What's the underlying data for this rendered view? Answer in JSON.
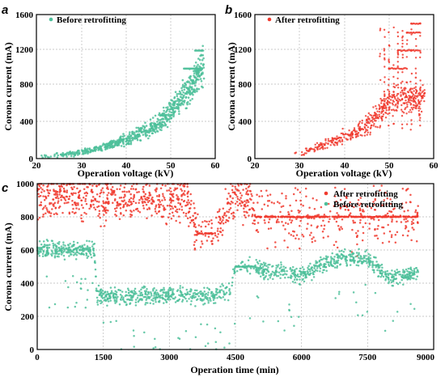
{
  "colors": {
    "before": "#4dbf9a",
    "after": "#f03a2e"
  },
  "chart_data": [
    {
      "panel": "a",
      "type": "scatter",
      "xlabel": "Operation voltage (kV)",
      "ylabel": "Corona current (mA)",
      "xlim": [
        20,
        60
      ],
      "ylim": [
        0,
        1600
      ],
      "xticks": [
        "20",
        "30",
        "40",
        "50",
        "60"
      ],
      "yticks": [
        "0",
        "400",
        "800",
        "1200",
        "1600"
      ],
      "grid": true,
      "legend": "top-left",
      "series": [
        {
          "name": "Before retrofitting",
          "color": "#4dbf9a",
          "trend": [
            [
              20,
              15
            ],
            [
              25,
              30
            ],
            [
              30,
              70
            ],
            [
              35,
              130
            ],
            [
              40,
              210
            ],
            [
              45,
              320
            ],
            [
              48,
              420
            ],
            [
              50,
              520
            ],
            [
              52,
              640
            ],
            [
              54,
              760
            ],
            [
              55,
              850
            ],
            [
              56,
              920
            ],
            [
              57,
              1000
            ]
          ],
          "points": [
            [
              22,
              20
            ],
            [
              26,
              35
            ],
            [
              31,
              60
            ],
            [
              36,
              140
            ],
            [
              41,
              220
            ],
            [
              46,
              330
            ],
            [
              49,
              450
            ],
            [
              51,
              560
            ],
            [
              53,
              700
            ],
            [
              55,
              840
            ],
            [
              56,
              1000
            ],
            [
              57,
              1200
            ],
            [
              57,
              800
            ]
          ]
        }
      ]
    },
    {
      "panel": "b",
      "type": "scatter",
      "xlabel": "Operation voltage (kV)",
      "ylabel": "Corona current (mA)",
      "xlim": [
        20,
        60
      ],
      "ylim": [
        0,
        1600
      ],
      "xticks": [
        "20",
        "30",
        "40",
        "50",
        "60"
      ],
      "yticks": [
        "0",
        "400",
        "800",
        "1200",
        "1600"
      ],
      "grid": true,
      "legend": "top-left",
      "series": [
        {
          "name": "After retrofitting",
          "color": "#f03a2e",
          "trend": [
            [
              29,
              60
            ],
            [
              33,
              100
            ],
            [
              37,
              180
            ],
            [
              40,
              240
            ],
            [
              43,
              300
            ],
            [
              45,
              380
            ],
            [
              47,
              460
            ],
            [
              49,
              560
            ],
            [
              50,
              650
            ]
          ],
          "points": [
            [
              29,
              60
            ],
            [
              34,
              110
            ],
            [
              38,
              180
            ],
            [
              41,
              260
            ],
            [
              44,
              330
            ],
            [
              47,
              450
            ],
            [
              49,
              600
            ],
            [
              50,
              1000
            ],
            [
              52,
              1200
            ],
            [
              54,
              1400
            ],
            [
              55,
              1500
            ],
            [
              57,
              1500
            ],
            [
              56,
              900
            ]
          ]
        }
      ]
    },
    {
      "panel": "c",
      "type": "scatter",
      "xlabel": "Operation time (min)",
      "ylabel": "Corona current (mA)",
      "xlim": [
        0,
        9000
      ],
      "ylim": [
        0,
        1000
      ],
      "xticks": [
        "0",
        "1500",
        "3000",
        "4500",
        "6000",
        "7500",
        "9000"
      ],
      "yticks": [
        "0",
        "200",
        "400",
        "600",
        "800",
        "1000"
      ],
      "grid": true,
      "legend": "top-right",
      "series": [
        {
          "name": "After retrofitting",
          "color": "#f03a2e",
          "profile": [
            [
              0,
              930
            ],
            [
              750,
              920
            ],
            [
              1500,
              900
            ],
            [
              2500,
              910
            ],
            [
              3400,
              900
            ],
            [
              3650,
              700
            ],
            [
              4050,
              700
            ],
            [
              4400,
              900
            ],
            [
              4800,
              920
            ],
            [
              5000,
              800
            ],
            [
              6000,
              800
            ],
            [
              7000,
              800
            ],
            [
              8000,
              800
            ],
            [
              8600,
              800
            ]
          ]
        },
        {
          "name": "Before retrofitting",
          "color": "#4dbf9a",
          "profile": [
            [
              0,
              600
            ],
            [
              1300,
              600
            ],
            [
              1350,
              330
            ],
            [
              2000,
              320
            ],
            [
              3000,
              330
            ],
            [
              4000,
              320
            ],
            [
              4400,
              360
            ],
            [
              4500,
              500
            ],
            [
              4950,
              500
            ],
            [
              5000,
              480
            ],
            [
              5500,
              470
            ],
            [
              6000,
              440
            ],
            [
              6400,
              500
            ],
            [
              7000,
              560
            ],
            [
              7500,
              540
            ],
            [
              8000,
              430
            ],
            [
              8600,
              460
            ]
          ]
        }
      ]
    }
  ]
}
